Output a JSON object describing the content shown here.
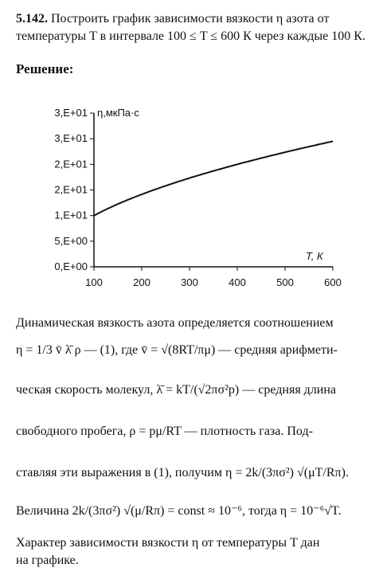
{
  "problem": {
    "number": "5.142.",
    "line1": "Построить график зависимости вязкости η азота от",
    "line2": "температуры T в интервале 100 ≤ T ≤ 600 К через каждые 100 К."
  },
  "solution_heading": "Решение:",
  "chart_data": {
    "type": "line",
    "ylabel": "η,мкПа·с",
    "xlabel": "T, К",
    "x_ticks": [
      "100",
      "200",
      "300",
      "400",
      "500",
      "600"
    ],
    "y_ticks": [
      "0,E+00",
      "5,E+00",
      "1,E+01",
      "2,E+01",
      "2,E+01",
      "3,E+01",
      "3,E+01"
    ],
    "xlim": [
      100,
      600
    ],
    "ylim": [
      0,
      30
    ],
    "series": [
      {
        "x": [
          100,
          200,
          300,
          400,
          500,
          600
        ],
        "values": [
          10.0,
          14.1,
          17.3,
          20.0,
          22.4,
          24.5
        ]
      }
    ]
  },
  "body": {
    "p1_line1": "Динамическая вязкость азота определяется соотношением",
    "p1_eq1": "η = 1/3 v̄ λ̄ ρ — (1), где v̄ = √(8RT/πμ) — средняя арифмети-",
    "p1_line3": "ческая скорость молекул, λ̄ = kT/(√2πσ²p) — средняя длина",
    "p1_line4": "свободного пробега, ρ = pμ/RT — плотность газа. Под-",
    "p1_line5": "ставляя эти выражения в (1), получим η = 2k/(3πσ²) √(μT/Rπ).",
    "p1_line6": "Величина 2k/(3πσ²) √(μ/Rπ) = const ≈ 10⁻⁶, тогда η = 10⁻⁶√T.",
    "p2_line1": "Характер зависимости вязкости η от температуры T дан",
    "p2_line2": "на графике."
  }
}
